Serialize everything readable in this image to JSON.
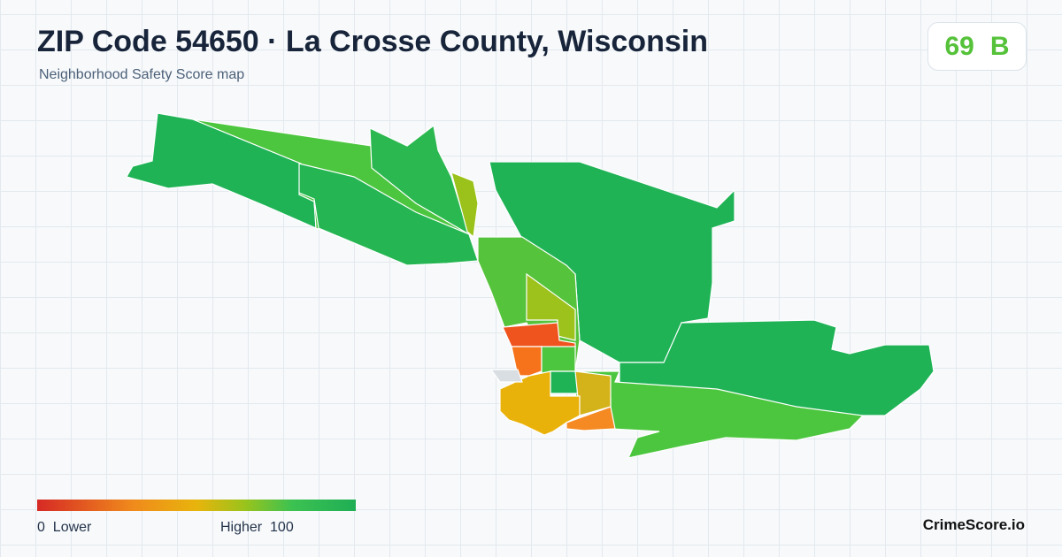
{
  "header": {
    "title": "ZIP Code 54650 · La Crosse County, Wisconsin",
    "subtitle": "Neighborhood Safety Score map"
  },
  "score": {
    "value": 69,
    "grade": "B"
  },
  "legend": {
    "min": 0,
    "min_label": "Lower",
    "max_label": "Higher",
    "max": 100
  },
  "footer": {
    "brand": "CrimeScore.io"
  }
}
